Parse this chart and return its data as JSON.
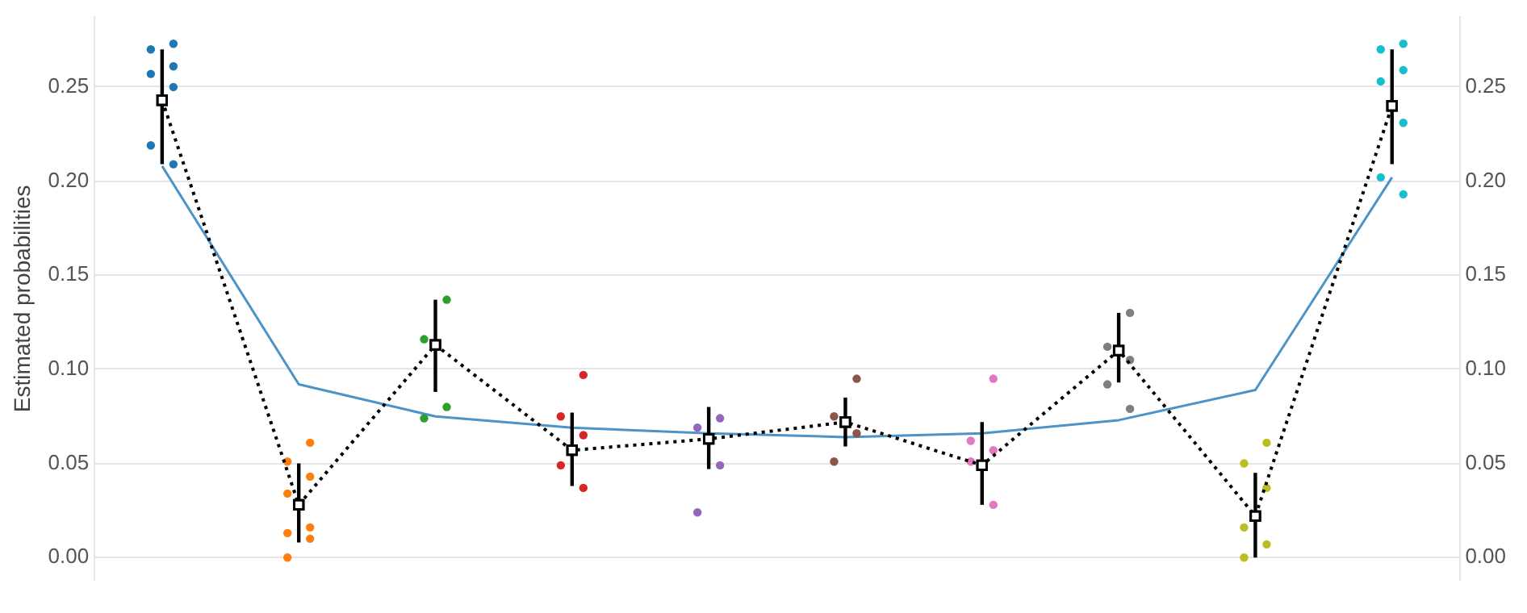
{
  "chart_data": {
    "type": "line",
    "ylabel": "Estimated probabilities",
    "categories": [
      null,
      null,
      null,
      null,
      null,
      null,
      null,
      null,
      null,
      null
    ],
    "ylim": [
      -0.012,
      0.287
    ],
    "yticks": [
      {
        "value": 0,
        "label": "0.00"
      },
      {
        "value": 0.05,
        "label": "0.05"
      },
      {
        "value": 0.1,
        "label": "0.10"
      },
      {
        "value": 0.15,
        "label": "0.15"
      },
      {
        "value": 0.2,
        "label": "0.20"
      },
      {
        "value": 0.25,
        "label": "0.25"
      }
    ],
    "y2lim": [
      -0.012,
      0.287
    ],
    "y2ticks": [
      {
        "value": 0,
        "label": "0.00"
      },
      {
        "value": 0.05,
        "label": "0.05"
      },
      {
        "value": 0.1,
        "label": "0.10"
      },
      {
        "value": 0.15,
        "label": "0.15"
      },
      {
        "value": 0.2,
        "label": "0.20"
      },
      {
        "value": 0.25,
        "label": "0.25"
      }
    ],
    "grid": "y",
    "legend": false,
    "series": [
      {
        "color": "#4c93c8",
        "marker": "none",
        "line_style": "solid",
        "values": [
          0.208,
          0.092,
          0.075,
          0.069,
          0.066,
          0.064,
          0.066,
          0.073,
          0.089,
          0.202
        ]
      },
      {
        "type": "scatter",
        "marker": "circle",
        "colors": [
          "#1f77b4",
          "#ff7f0e",
          "#2ca02c",
          "#d62728",
          "#9467bd",
          "#8c564b",
          "#e377c2",
          "#7f7f7f",
          "#bcbd22",
          "#17becf"
        ],
        "values": [
          0.273,
          0.061,
          0.137,
          0.097,
          0.074,
          0.095,
          0.095,
          0.13,
          0.061,
          0.273
        ]
      },
      {
        "type": "scatter",
        "marker": "circle",
        "colors": [
          "#1f77b4",
          "#ff7f0e",
          "#2ca02c",
          "#d62728",
          "#9467bd",
          "#8c564b",
          "#e377c2",
          "#7f7f7f",
          "#bcbd22",
          "#17becf"
        ],
        "values": [
          0.27,
          0.051,
          0.116,
          0.075,
          0.069,
          0.075,
          0.062,
          0.112,
          0.05,
          0.27
        ]
      },
      {
        "type": "scatter",
        "marker": "circle",
        "colors": [
          "#1f77b4",
          "#ff7f0e",
          "#2ca02c",
          "#d62728",
          "#9467bd",
          "#8c564b",
          "#e377c2",
          "#7f7f7f",
          "#bcbd22",
          "#17becf"
        ],
        "values": [
          0.261,
          0.043,
          0.08,
          0.065,
          0.049,
          0.066,
          0.057,
          0.105,
          0.037,
          0.259
        ]
      },
      {
        "type": "scatter",
        "marker": "circle",
        "colors": [
          "#1f77b4",
          "#ff7f0e",
          "#2ca02c",
          "#d62728",
          "#9467bd",
          "#8c564b",
          "#e377c2",
          "#7f7f7f",
          "#bcbd22",
          "#17becf"
        ],
        "values": [
          0.257,
          0.034,
          0.074,
          0.049,
          0.024,
          0.051,
          0.051,
          0.092,
          0.016,
          0.253
        ]
      },
      {
        "type": "scatter",
        "marker": "circle",
        "colors": [
          "#1f77b4",
          "#ff7f0e",
          "#2ca02c",
          "#d62728",
          "#9467bd",
          "#8c564b",
          "#e377c2",
          "#7f7f7f",
          "#bcbd22",
          "#17becf"
        ],
        "values": [
          0.25,
          0.016,
          null,
          0.037,
          null,
          null,
          0.028,
          0.079,
          0.007,
          0.231
        ]
      },
      {
        "type": "scatter",
        "marker": "circle",
        "colors": [
          "#1f77b4",
          "#ff7f0e",
          "#2ca02c",
          "#d62728",
          "#9467bd",
          "#8c564b",
          "#e377c2",
          "#7f7f7f",
          "#bcbd22",
          "#17becf"
        ],
        "values": [
          0.219,
          0.013,
          null,
          null,
          null,
          null,
          null,
          null,
          0.0,
          0.202
        ]
      },
      {
        "type": "scatter",
        "marker": "circle",
        "colors": [
          "#1f77b4",
          "#ff7f0e",
          "#2ca02c",
          "#d62728",
          "#9467bd",
          "#8c564b",
          "#e377c2",
          "#7f7f7f",
          "#bcbd22",
          "#17becf"
        ],
        "values": [
          0.209,
          0.01,
          null,
          null,
          null,
          null,
          null,
          null,
          null,
          0.193
        ]
      },
      {
        "type": "scatter",
        "marker": "circle",
        "colors": [
          "#1f77b4",
          "#ff7f0e",
          "#2ca02c",
          "#d62728",
          "#9467bd",
          "#8c564b",
          "#e377c2",
          "#7f7f7f",
          "#bcbd22",
          "#17becf"
        ],
        "values": [
          null,
          0.0,
          null,
          null,
          null,
          null,
          null,
          null,
          null,
          null
        ]
      },
      {
        "color": "#000000",
        "marker": "square",
        "line_style": "dotted",
        "values": [
          0.243,
          0.028,
          0.113,
          0.057,
          0.063,
          0.072,
          0.049,
          0.11,
          0.022,
          0.24
        ],
        "errors": [
          [
            0.209,
            0.27
          ],
          [
            0.008,
            0.05
          ],
          [
            0.088,
            0.137
          ],
          [
            0.038,
            0.077
          ],
          [
            0.047,
            0.08
          ],
          [
            0.059,
            0.085
          ],
          [
            0.028,
            0.072
          ],
          [
            0.093,
            0.13
          ],
          [
            0.0,
            0.045
          ],
          [
            0.209,
            0.27
          ]
        ]
      }
    ]
  }
}
